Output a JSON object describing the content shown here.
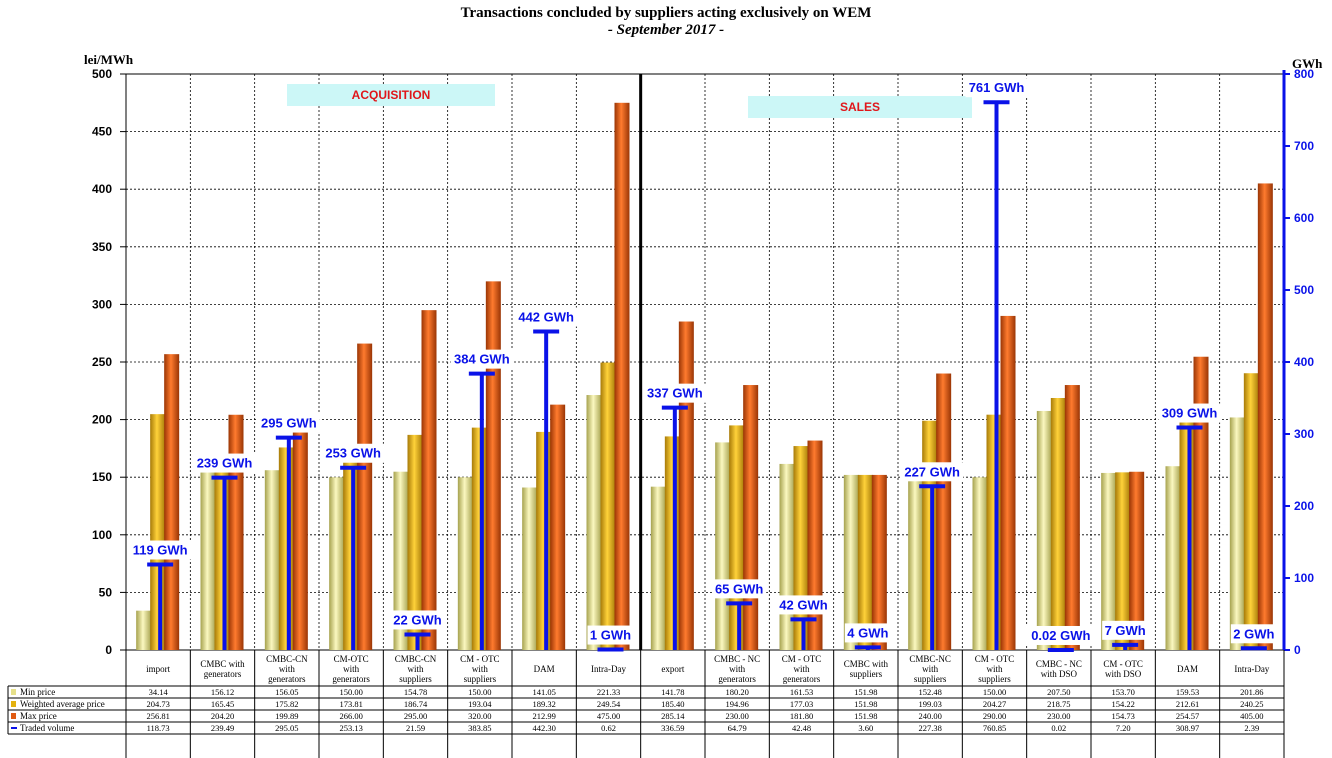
{
  "chart_data": {
    "type": "bar",
    "title": "Transactions concluded by suppliers acting exclusively on WEM",
    "subtitle": "- September 2017 -",
    "ylabel": "lei/MWh",
    "ylabel_right": "GWh",
    "ylim": [
      0,
      500
    ],
    "ylim_right": [
      0,
      800
    ],
    "yticks": [
      0,
      50,
      100,
      150,
      200,
      250,
      300,
      350,
      400,
      450,
      500
    ],
    "yticks_right": [
      0,
      100,
      200,
      300,
      400,
      500,
      600,
      700,
      800
    ],
    "grid": true,
    "sections": [
      "ACQUISITION",
      "SALES"
    ],
    "categories": [
      "import",
      "CMBC with generators",
      "CMBC-CN with generators",
      "CM-OTC with generators",
      "CMBC-CN with suppliers",
      "CM - OTC with suppliers",
      "DAM",
      "Intra-Day",
      "export",
      "CMBC - NC with generators",
      "CM - OTC with generators",
      "CMBC with suppliers",
      "CMBC-NC with suppliers",
      "CM - OTC with suppliers",
      "CMBC - NC with DSO",
      "CM - OTC with DSO",
      "DAM",
      "Intra-Day"
    ],
    "series": [
      {
        "name": "Min price",
        "color": "#e6e08a",
        "values": [
          34.14,
          156.12,
          156.05,
          150.0,
          154.78,
          150.0,
          141.05,
          221.33,
          141.78,
          180.2,
          161.53,
          151.98,
          152.48,
          150.0,
          207.5,
          153.7,
          159.53,
          201.86
        ]
      },
      {
        "name": "Weighted average price",
        "color": "#e3b10f",
        "values": [
          204.73,
          165.45,
          175.82,
          173.81,
          186.74,
          193.04,
          189.32,
          249.54,
          185.4,
          194.96,
          177.03,
          151.98,
          199.03,
          204.27,
          218.75,
          154.22,
          212.61,
          240.25
        ]
      },
      {
        "name": "Max price",
        "color": "#e05a12",
        "values": [
          256.81,
          204.2,
          199.89,
          266.0,
          295.0,
          320.0,
          212.99,
          475.0,
          285.14,
          230.0,
          181.8,
          151.98,
          240.0,
          290.0,
          230.0,
          154.73,
          254.57,
          405.0
        ]
      },
      {
        "name": "Traded volume",
        "color": "#0a12e8",
        "axis": "right",
        "values": [
          118.73,
          239.49,
          295.05,
          253.13,
          21.59,
          383.85,
          442.3,
          0.62,
          336.59,
          64.79,
          42.48,
          3.6,
          227.38,
          760.85,
          0.02,
          7.2,
          308.97,
          2.39
        ],
        "labels": [
          "119 GWh",
          "239 GWh",
          "295 GWh",
          "253 GWh",
          "22 GWh",
          "384 GWh",
          "442 GWh",
          "1 GWh",
          "337 GWh",
          "65 GWh",
          "42 GWh",
          "4 GWh",
          "227 GWh",
          "761 GWh",
          "0.02 GWh",
          "7 GWh",
          "309 GWh",
          "2 GWh"
        ]
      }
    ],
    "table_rows": [
      {
        "name": "Min price",
        "values": [
          "34.14",
          "156.12",
          "156.05",
          "150.00",
          "154.78",
          "150.00",
          "141.05",
          "221.33",
          "141.78",
          "180.20",
          "161.53",
          "151.98",
          "152.48",
          "150.00",
          "207.50",
          "153.70",
          "159.53",
          "201.86"
        ]
      },
      {
        "name": "Weighted average price",
        "values": [
          "204.73",
          "165.45",
          "175.82",
          "173.81",
          "186.74",
          "193.04",
          "189.32",
          "249.54",
          "185.40",
          "194.96",
          "177.03",
          "151.98",
          "199.03",
          "204.27",
          "218.75",
          "154.22",
          "212.61",
          "240.25"
        ]
      },
      {
        "name": "Max price",
        "values": [
          "256.81",
          "204.20",
          "199.89",
          "266.00",
          "295.00",
          "320.00",
          "212.99",
          "475.00",
          "285.14",
          "230.00",
          "181.80",
          "151.98",
          "240.00",
          "290.00",
          "230.00",
          "154.73",
          "254.57",
          "405.00"
        ]
      },
      {
        "name": "Traded volume",
        "values": [
          "118.73",
          "239.49",
          "295.05",
          "253.13",
          "21.59",
          "383.85",
          "442.30",
          "0.62",
          "336.59",
          "64.79",
          "42.48",
          "3.60",
          "227.38",
          "760.85",
          "0.02",
          "7.20",
          "308.97",
          "2.39"
        ]
      }
    ]
  }
}
